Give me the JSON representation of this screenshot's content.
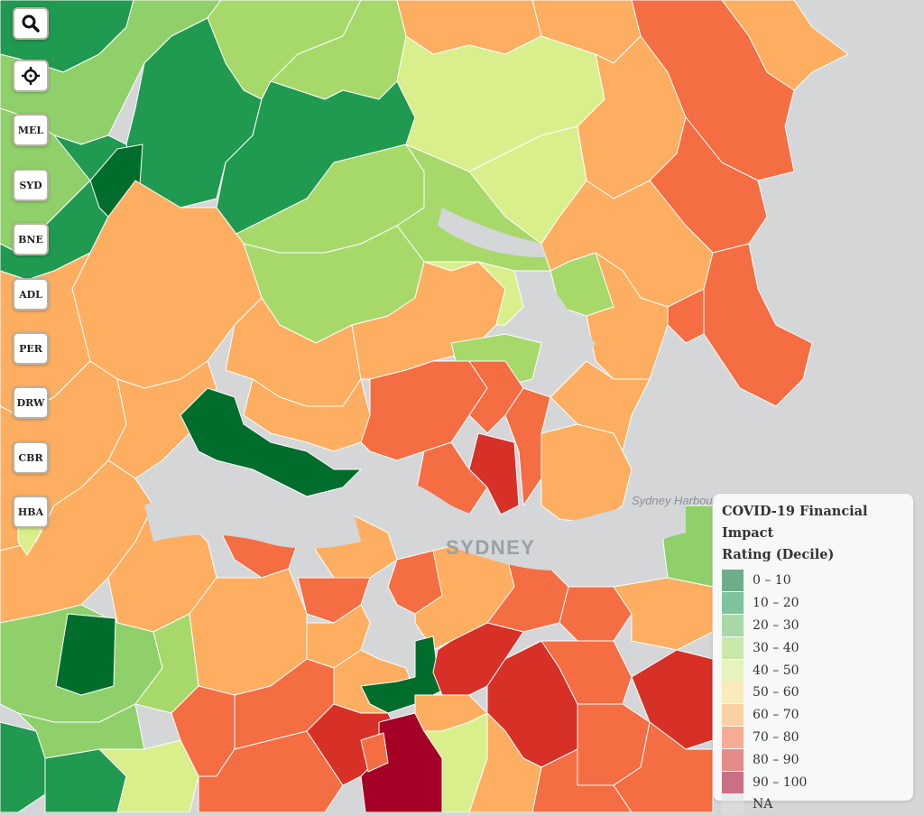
{
  "map": {
    "place_labels": {
      "city": "SYDNEY",
      "harbour": "Sydney Harbour"
    }
  },
  "controls": {
    "search_icon": "search-icon",
    "locate_icon": "crosshair-icon",
    "cities": [
      "MEL",
      "SYD",
      "BNE",
      "ADL",
      "PER",
      "DRW",
      "CBR",
      "HBA"
    ]
  },
  "legend": {
    "title_line1": "COVID-19 Financial Impact",
    "title_line2": "Rating (Decile)",
    "items": [
      {
        "label": "0 – 10",
        "color": "#006d2c"
      },
      {
        "label": "10 – 20",
        "color": "#1a9850"
      },
      {
        "label": "20 – 30",
        "color": "#66bd63"
      },
      {
        "label": "30 – 40",
        "color": "#a6d96a"
      },
      {
        "label": "40 – 50",
        "color": "#d9ef8b"
      },
      {
        "label": "50 – 60",
        "color": "#fee08b"
      },
      {
        "label": "60 – 70",
        "color": "#fdae61"
      },
      {
        "label": "70 – 80",
        "color": "#f46d43"
      },
      {
        "label": "80 – 90",
        "color": "#d73027"
      },
      {
        "label": "90 – 100",
        "color": "#a50026"
      },
      {
        "label": "NA",
        "color": "#e0e0e0"
      }
    ]
  }
}
